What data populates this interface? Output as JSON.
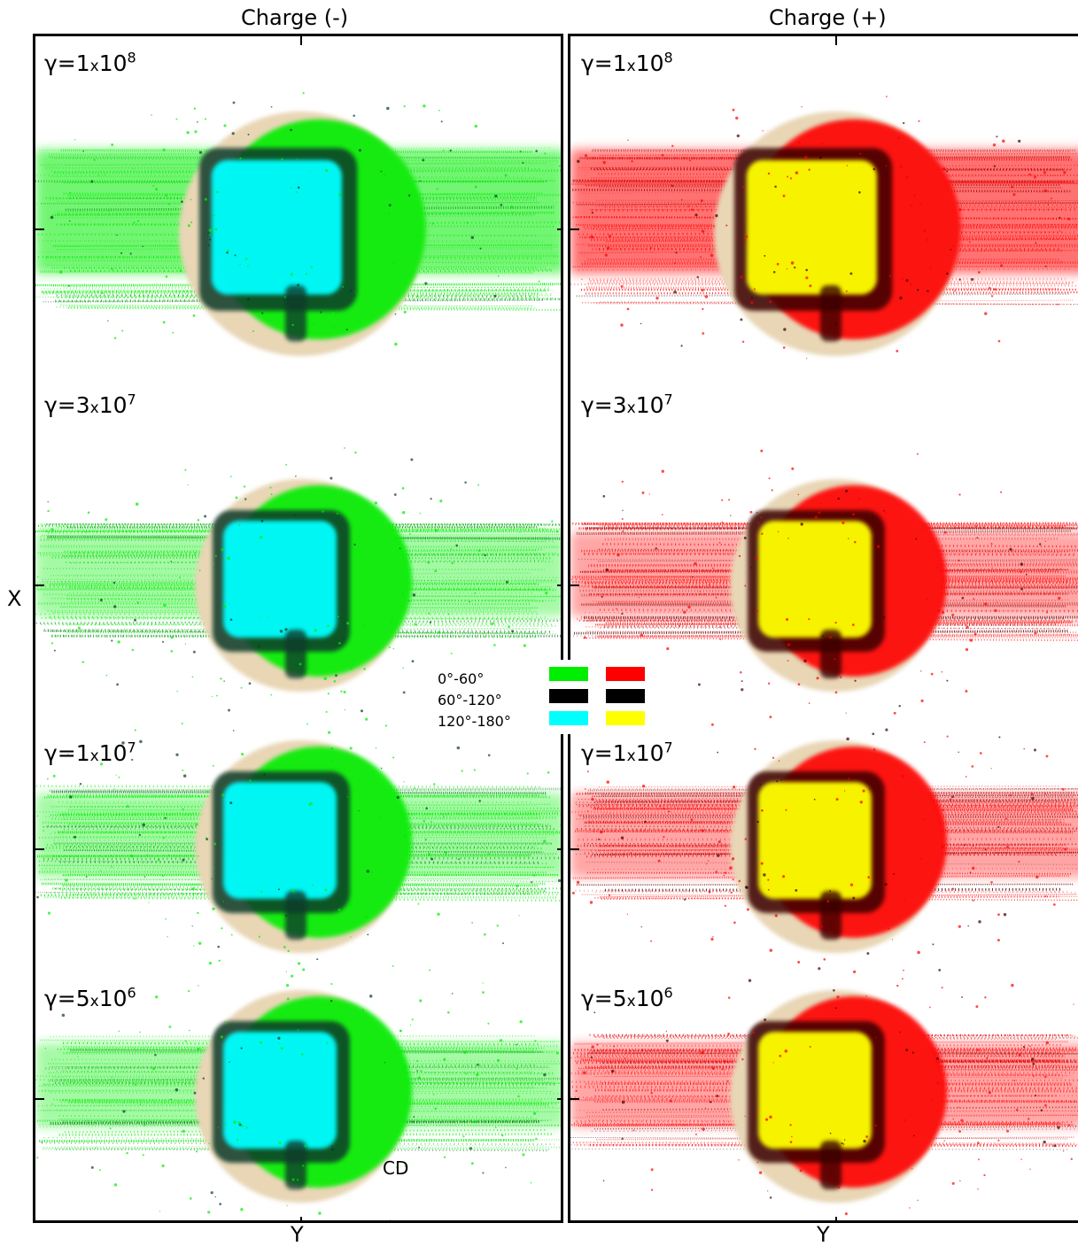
{
  "columns": [
    {
      "title": "Charge (-)",
      "xlabel": "Y"
    },
    {
      "title": "Charge (+)",
      "xlabel": "Y"
    }
  ],
  "ylabel": "X",
  "rows": [
    {
      "base": "γ=1",
      "times": "x",
      "mant": "10",
      "exp": "8"
    },
    {
      "base": "γ=3",
      "times": "x",
      "mant": "10",
      "exp": "7"
    },
    {
      "base": "γ=1",
      "times": "x",
      "mant": "10",
      "exp": "7"
    },
    {
      "base": "γ=5",
      "times": "x",
      "mant": "10",
      "exp": "6"
    }
  ],
  "annotation": "CD",
  "legend": [
    {
      "label": "0°-60°",
      "neg_color": "#00ee00",
      "pos_color": "#ff0000"
    },
    {
      "label": "60°-120°",
      "neg_color": "#000000",
      "pos_color": "#000000"
    },
    {
      "label": "120°-180°",
      "neg_color": "#00ffff",
      "pos_color": "#ffff00"
    }
  ],
  "colors": {
    "halo": "#e8d6b5",
    "dark_neg": "#0b3a2a",
    "dark_pos": "#3a0000"
  }
}
